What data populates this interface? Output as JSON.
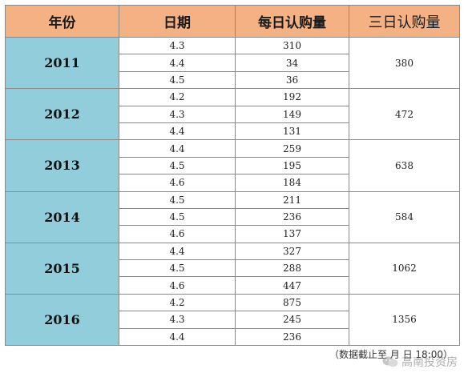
{
  "table": {
    "headers": {
      "year": "年份",
      "date": "日期",
      "daily": "每日认购量",
      "three_day": "三日认购量"
    },
    "groups": [
      {
        "year": "2011",
        "rows": [
          {
            "date": "4.3",
            "daily": "310"
          },
          {
            "date": "4.4",
            "daily": "34"
          },
          {
            "date": "4.5",
            "daily": "36"
          }
        ],
        "total": "380"
      },
      {
        "year": "2012",
        "rows": [
          {
            "date": "4.2",
            "daily": "192"
          },
          {
            "date": "4.3",
            "daily": "149"
          },
          {
            "date": "4.4",
            "daily": "131"
          }
        ],
        "total": "472"
      },
      {
        "year": "2013",
        "rows": [
          {
            "date": "4.4",
            "daily": "259"
          },
          {
            "date": "4.5",
            "daily": "195"
          },
          {
            "date": "4.6",
            "daily": "184"
          }
        ],
        "total": "638"
      },
      {
        "year": "2014",
        "rows": [
          {
            "date": "4.5",
            "daily": "211"
          },
          {
            "date": "4.5",
            "daily": "236"
          },
          {
            "date": "4.6",
            "daily": "137"
          }
        ],
        "total": "584"
      },
      {
        "year": "2015",
        "rows": [
          {
            "date": "4.4",
            "daily": "327"
          },
          {
            "date": "4.5",
            "daily": "288"
          },
          {
            "date": "4.6",
            "daily": "447"
          }
        ],
        "total": "1062"
      },
      {
        "year": "2016",
        "rows": [
          {
            "date": "4.2",
            "daily": "875"
          },
          {
            "date": "4.3",
            "daily": "245"
          },
          {
            "date": "4.4",
            "daily": "236"
          }
        ],
        "total": "1356"
      }
    ]
  },
  "footnote": "（数据截止至    月    日 18:00）",
  "watermark": {
    "text": "高南投资房",
    "icon": "wechat-icon"
  },
  "colors": {
    "header_bg": "#f4b183",
    "year_bg": "#92cddc",
    "border": "#8a8a8a"
  }
}
